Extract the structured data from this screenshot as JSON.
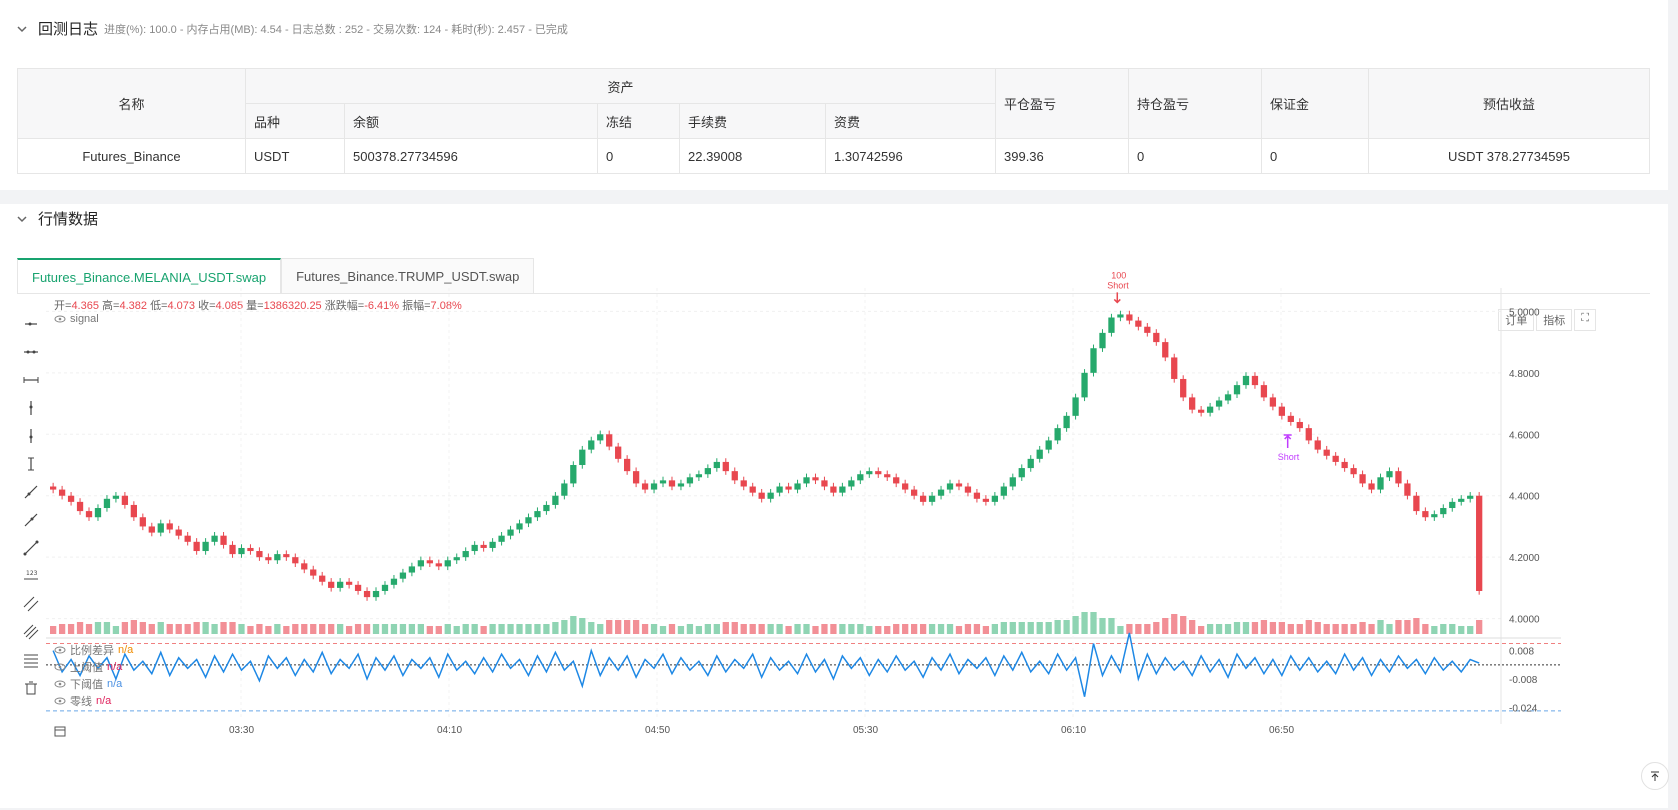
{
  "log": {
    "title": "回测日志",
    "stats": "进度(%): 100.0 - 内存占用(MB): 4.54 - 日志总数 : 252 - 交易次数:  124 - 耗时(秒): 2.457 - 已完成"
  },
  "assets_table": {
    "h_name": "名称",
    "h_assets": "资产",
    "h_close_pnl": "平仓盈亏",
    "h_hold_pnl": "持仓盈亏",
    "h_margin": "保证金",
    "h_est": "预估收益",
    "sub": [
      "品种",
      "余额",
      "冻结",
      "手续费",
      "资费"
    ],
    "row": {
      "name": "Futures_Binance",
      "symbol": "USDT",
      "balance": "500378.27734596",
      "frozen": "0",
      "fee": "22.39008",
      "funding": "1.30742596",
      "close_pnl": "399.36",
      "hold_pnl": "0",
      "margin": "0",
      "est": "USDT 378.27734595"
    }
  },
  "market": {
    "title": "行情数据",
    "tabs": [
      "Futures_Binance.MELANIA_USDT.swap",
      "Futures_Binance.TRUMP_USDT.swap"
    ],
    "legend": {
      "open_label": "开=",
      "open": "4.365",
      "high_label": "高=",
      "high": "4.382",
      "low_label": "低=",
      "low": "4.073",
      "close_label": "收=",
      "close": "4.085",
      "vol_label": "量=",
      "vol": "1386320.25",
      "chg_label": "涨跌幅=",
      "chg": "-6.41%",
      "amp_label": "振幅=",
      "amp": "7.08%"
    },
    "signal_label": "signal",
    "buttons": [
      "订单",
      "指标"
    ],
    "indicators": [
      {
        "name": "比例差异",
        "value": "n/a",
        "color": "#f08c00"
      },
      {
        "name": "上阈值",
        "value": "n/a",
        "color": "#e0245e"
      },
      {
        "name": "下阈值",
        "value": "n/a",
        "color": "#4a90e2"
      },
      {
        "name": "零线",
        "value": "n/a",
        "color": "#e0245e"
      }
    ]
  },
  "chart_data": {
    "type": "candlestick",
    "price_axis": [
      "5.0000",
      "4.8000",
      "4.6000",
      "4.4000",
      "4.2000",
      "4.0000"
    ],
    "osc_axis": [
      "0.008",
      "-0.008",
      "-0.024"
    ],
    "time_axis": [
      "03:30",
      "04:10",
      "04:50",
      "05:30",
      "06:10",
      "06:50"
    ],
    "ylim": [
      3.95,
      5.05
    ],
    "closes": [
      4.42,
      4.4,
      4.38,
      4.35,
      4.33,
      4.36,
      4.39,
      4.4,
      4.37,
      4.33,
      4.3,
      4.28,
      4.31,
      4.29,
      4.27,
      4.25,
      4.22,
      4.25,
      4.27,
      4.24,
      4.21,
      4.23,
      4.22,
      4.2,
      4.19,
      4.21,
      4.2,
      4.18,
      4.16,
      4.14,
      4.12,
      4.1,
      4.12,
      4.11,
      4.09,
      4.07,
      4.09,
      4.11,
      4.13,
      4.15,
      4.17,
      4.19,
      4.18,
      4.17,
      4.19,
      4.2,
      4.22,
      4.24,
      4.23,
      4.25,
      4.27,
      4.29,
      4.31,
      4.33,
      4.35,
      4.37,
      4.4,
      4.44,
      4.5,
      4.55,
      4.58,
      4.6,
      4.56,
      4.52,
      4.48,
      4.44,
      4.42,
      4.44,
      4.45,
      4.43,
      4.44,
      4.46,
      4.47,
      4.49,
      4.51,
      4.48,
      4.45,
      4.43,
      4.41,
      4.39,
      4.41,
      4.43,
      4.42,
      4.44,
      4.46,
      4.45,
      4.43,
      4.41,
      4.43,
      4.45,
      4.47,
      4.48,
      4.47,
      4.46,
      4.44,
      4.42,
      4.4,
      4.38,
      4.4,
      4.42,
      4.44,
      4.43,
      4.41,
      4.39,
      4.38,
      4.4,
      4.43,
      4.46,
      4.49,
      4.52,
      4.55,
      4.58,
      4.62,
      4.66,
      4.72,
      4.8,
      4.88,
      4.93,
      4.98,
      4.99,
      4.97,
      4.95,
      4.93,
      4.9,
      4.85,
      4.78,
      4.72,
      4.68,
      4.67,
      4.69,
      4.71,
      4.73,
      4.76,
      4.79,
      4.76,
      4.72,
      4.69,
      4.66,
      4.64,
      4.62,
      4.58,
      4.55,
      4.53,
      4.51,
      4.49,
      4.47,
      4.44,
      4.42,
      4.46,
      4.48,
      4.44,
      4.4,
      4.35,
      4.33,
      4.34,
      4.36,
      4.38,
      4.39,
      4.4,
      4.09
    ],
    "osc": [
      0.008,
      -0.004,
      0.003,
      -0.006,
      0.005,
      -0.002,
      0.004,
      -0.008,
      0.006,
      -0.003,
      0.002,
      -0.005,
      0.007,
      -0.006,
      0.004,
      -0.002,
      0.003,
      -0.007,
      0.005,
      -0.004,
      0.006,
      -0.003,
      0.002,
      -0.009,
      0.005,
      -0.002,
      0.004,
      -0.006,
      0.003,
      -0.004,
      0.007,
      -0.005,
      0.003,
      -0.002,
      0.006,
      -0.008,
      0.004,
      -0.003,
      0.005,
      -0.006,
      0.003,
      -0.002,
      0.004,
      -0.007,
      0.006,
      -0.003,
      0.002,
      -0.005,
      0.004,
      -0.004,
      0.006,
      -0.002,
      0.003,
      -0.006,
      0.005,
      -0.004,
      0.007,
      -0.003,
      0.002,
      -0.012,
      0.008,
      -0.006,
      0.004,
      -0.003,
      0.005,
      -0.007,
      0.003,
      -0.002,
      0.006,
      -0.005,
      0.004,
      -0.003,
      0.002,
      -0.006,
      0.005,
      -0.004,
      0.003,
      -0.002,
      0.006,
      -0.007,
      0.004,
      -0.003,
      0.002,
      -0.005,
      0.006,
      -0.004,
      0.003,
      -0.008,
      0.005,
      -0.002,
      0.004,
      -0.006,
      0.003,
      -0.004,
      0.005,
      -0.003,
      0.002,
      -0.007,
      0.004,
      -0.003,
      0.006,
      -0.005,
      0.003,
      -0.002,
      0.004,
      -0.006,
      0.005,
      -0.003,
      0.007,
      -0.004,
      0.002,
      -0.005,
      0.006,
      -0.003,
      0.004,
      -0.018,
      0.012,
      -0.006,
      0.005,
      -0.004,
      0.018,
      -0.008,
      0.006,
      -0.005,
      0.004,
      -0.003,
      0.002,
      -0.006,
      0.005,
      -0.004,
      0.003,
      -0.007,
      0.006,
      -0.002,
      0.004,
      -0.005,
      0.003,
      -0.006,
      0.005,
      -0.003,
      0.004,
      -0.004,
      0.002,
      -0.005,
      0.006,
      -0.003,
      0.004,
      -0.006,
      0.003,
      -0.004,
      0.005,
      -0.002,
      0.003,
      -0.005,
      0.004,
      -0.003,
      0.002,
      -0.004,
      0.003,
      0.001
    ],
    "signals": [
      {
        "index": 119,
        "label": "100",
        "sub": "Short",
        "color": "#e8474f"
      },
      {
        "index": 138,
        "label": "",
        "sub": "Short",
        "color": "#c13cff"
      }
    ]
  }
}
